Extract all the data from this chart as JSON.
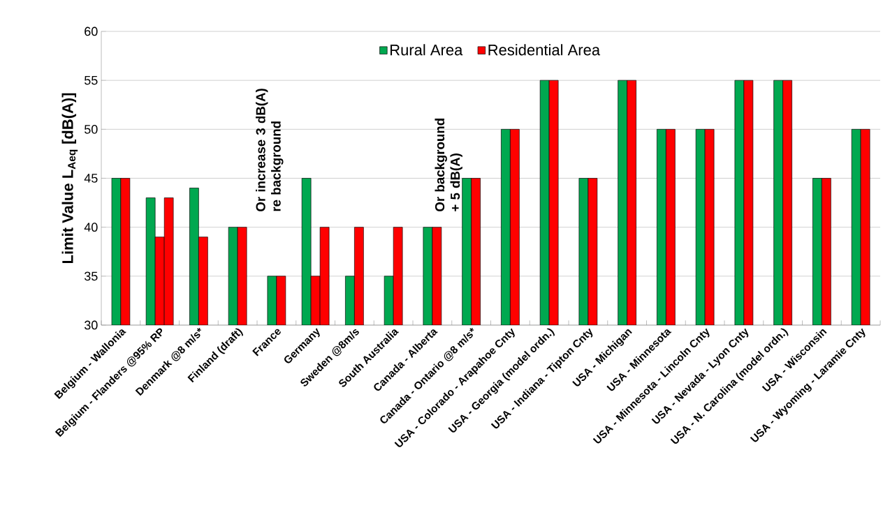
{
  "chart_data": {
    "type": "bar",
    "ylabel": "Limit Value L$_{Aeq}$ [dB(A)]",
    "categories": [
      "Belgium - Wallonia",
      "Belgium - Flanders @95% RP",
      "Denmark @8 m/s*",
      "Finland (draft)",
      "France",
      "Germany",
      "Sweden @8m/s",
      "South Australia",
      "Canada - Alberta",
      "Canada - Ontario @8 m/s*",
      "USA - Colorado - Arapahoe Cnty",
      "USA - Georgia (model ordn.)",
      "USA - Indiana - Tipton Cnty",
      "USA - Michigan",
      "USA - Minnesota",
      "USA - Minnesota - Lincoln Cnty",
      "USA - Nevada - Lyon Cnty",
      "USA - N. Carolina (model ordn.)",
      "USA - Wisconsin",
      "USA - Wyoming - Laramie Cnty"
    ],
    "series": [
      {
        "name": "Rural Area",
        "color": "#00a850",
        "values": [
          45,
          43,
          44,
          40,
          35,
          45,
          35,
          35,
          40,
          45,
          50,
          55,
          45,
          55,
          50,
          50,
          55,
          55,
          45,
          50
        ]
      },
      {
        "name": "Residential Area",
        "color": "#ff0000",
        "values": [
          45,
          39,
          39,
          40,
          35,
          35,
          40,
          40,
          40,
          45,
          50,
          55,
          45,
          55,
          50,
          50,
          55,
          55,
          45,
          50
        ]
      },
      {
        "color": "#ff0000",
        "values": [
          null,
          43,
          null,
          null,
          null,
          40,
          null,
          null,
          null,
          null,
          null,
          null,
          null,
          null,
          null,
          null,
          null,
          null,
          null,
          null
        ]
      }
    ],
    "ylim": [
      30,
      60
    ],
    "yticks": [
      30,
      35,
      40,
      45,
      50,
      55,
      60
    ],
    "grid": "y",
    "legend": "top",
    "annotations": [
      "Or increase 3 dB(A) re background",
      "Or background + 5 dB(A)"
    ]
  }
}
